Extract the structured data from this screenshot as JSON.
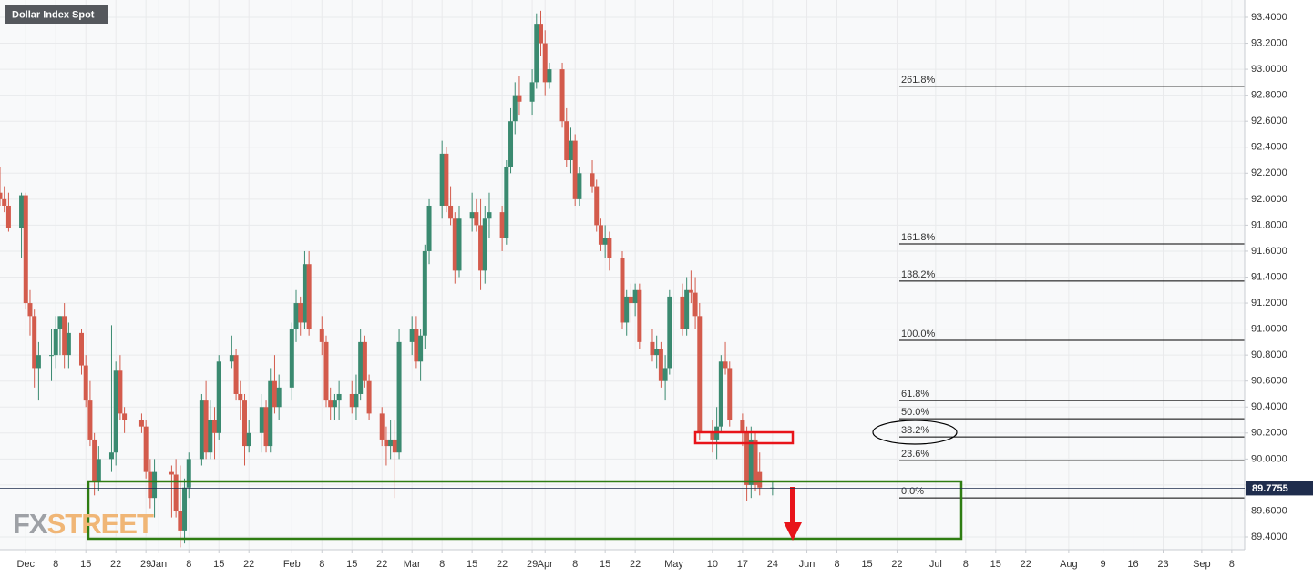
{
  "chart_data": {
    "type": "candlestick",
    "title": "Dollar Index Spot",
    "watermark": {
      "prefix": "FX",
      "suffix": "STREET"
    },
    "up_color": "#3a8a70",
    "down_color": "#d35b4c",
    "grid": true,
    "xlim": [
      "11-25",
      "09-11"
    ],
    "ylim": [
      89.302,
      93.533
    ],
    "yticks": [
      {
        "value": 89.4,
        "label": "89.4000"
      },
      {
        "value": 89.6,
        "label": "89.6000"
      },
      {
        "value": 89.8,
        "label": "89.8000"
      },
      {
        "value": 90.0,
        "label": "90.0000"
      },
      {
        "value": 90.2,
        "label": "90.2000"
      },
      {
        "value": 90.4,
        "label": "90.4000"
      },
      {
        "value": 90.6,
        "label": "90.6000"
      },
      {
        "value": 90.8,
        "label": "90.8000"
      },
      {
        "value": 91.0,
        "label": "91.0000"
      },
      {
        "value": 91.2,
        "label": "91.2000"
      },
      {
        "value": 91.4,
        "label": "91.4000"
      },
      {
        "value": 91.6,
        "label": "91.6000"
      },
      {
        "value": 91.8,
        "label": "91.8000"
      },
      {
        "value": 92.0,
        "label": "92.0000"
      },
      {
        "value": 92.2,
        "label": "92.2000"
      },
      {
        "value": 92.4,
        "label": "92.4000"
      },
      {
        "value": 92.6,
        "label": "92.6000"
      },
      {
        "value": 92.8,
        "label": "92.8000"
      },
      {
        "value": 93.0,
        "label": "93.0000"
      },
      {
        "value": 93.2,
        "label": "93.2000"
      },
      {
        "value": 93.4,
        "label": "93.4000"
      }
    ],
    "xticks": [
      {
        "value": "12-01",
        "label": "Dec"
      },
      {
        "value": "12-08",
        "label": "8"
      },
      {
        "value": "12-15",
        "label": "15"
      },
      {
        "value": "12-22",
        "label": "22"
      },
      {
        "value": "12-29",
        "label": "29"
      },
      {
        "value": "01-01",
        "label": "Jan"
      },
      {
        "value": "01-08",
        "label": "8"
      },
      {
        "value": "01-15",
        "label": "15"
      },
      {
        "value": "01-22",
        "label": "22"
      },
      {
        "value": "02-01",
        "label": "Feb"
      },
      {
        "value": "02-08",
        "label": "8"
      },
      {
        "value": "02-15",
        "label": "15"
      },
      {
        "value": "02-22",
        "label": "22"
      },
      {
        "value": "03-01",
        "label": "Mar"
      },
      {
        "value": "03-08",
        "label": "8"
      },
      {
        "value": "03-15",
        "label": "15"
      },
      {
        "value": "03-22",
        "label": "22"
      },
      {
        "value": "03-29",
        "label": "29"
      },
      {
        "value": "04-01",
        "label": "Apr"
      },
      {
        "value": "04-08",
        "label": "8"
      },
      {
        "value": "04-15",
        "label": "15"
      },
      {
        "value": "04-22",
        "label": "22"
      },
      {
        "value": "05-01",
        "label": "May"
      },
      {
        "value": "05-10",
        "label": "10"
      },
      {
        "value": "05-17",
        "label": "17"
      },
      {
        "value": "05-24",
        "label": "24"
      },
      {
        "value": "06-01",
        "label": "Jun"
      },
      {
        "value": "06-08",
        "label": "8"
      },
      {
        "value": "06-15",
        "label": "15"
      },
      {
        "value": "06-22",
        "label": "22"
      },
      {
        "value": "07-01",
        "label": "Jul"
      },
      {
        "value": "07-08",
        "label": "8"
      },
      {
        "value": "07-15",
        "label": "15"
      },
      {
        "value": "07-22",
        "label": "22"
      },
      {
        "value": "08-01",
        "label": "Aug"
      },
      {
        "value": "08-09",
        "label": "9"
      },
      {
        "value": "08-16",
        "label": "16"
      },
      {
        "value": "08-23",
        "label": "23"
      },
      {
        "value": "09-01",
        "label": "Sep"
      },
      {
        "value": "09-08",
        "label": "8"
      }
    ],
    "x": [
      "11-25",
      "11-26",
      "11-27",
      "11-30",
      "12-01",
      "12-02",
      "12-03",
      "12-04",
      "12-07",
      "12-08",
      "12-09",
      "12-10",
      "12-11",
      "12-14",
      "12-15",
      "12-16",
      "12-17",
      "12-18",
      "12-21",
      "12-22",
      "12-23",
      "12-24",
      "12-28",
      "12-29",
      "12-30",
      "12-31",
      "01-04",
      "01-05",
      "01-06",
      "01-07",
      "01-08",
      "01-11",
      "01-12",
      "01-13",
      "01-14",
      "01-15",
      "01-18",
      "01-19",
      "01-20",
      "01-21",
      "01-22",
      "01-25",
      "01-26",
      "01-27",
      "01-28",
      "01-29",
      "02-01",
      "02-02",
      "02-03",
      "02-04",
      "02-05",
      "02-08",
      "02-09",
      "02-10",
      "02-11",
      "02-12",
      "02-15",
      "02-16",
      "02-17",
      "02-18",
      "02-19",
      "02-22",
      "02-23",
      "02-24",
      "02-25",
      "02-26",
      "03-01",
      "03-02",
      "03-03",
      "03-04",
      "03-05",
      "03-08",
      "03-09",
      "03-10",
      "03-11",
      "03-12",
      "03-15",
      "03-16",
      "03-17",
      "03-18",
      "03-19",
      "03-22",
      "03-23",
      "03-24",
      "03-25",
      "03-26",
      "03-29",
      "03-30",
      "03-31",
      "04-01",
      "04-02",
      "04-05",
      "04-06",
      "04-07",
      "04-08",
      "04-09",
      "04-12",
      "04-13",
      "04-14",
      "04-15",
      "04-16",
      "04-19",
      "04-20",
      "04-21",
      "04-22",
      "04-23",
      "04-26",
      "04-27",
      "04-28",
      "04-29",
      "04-30",
      "05-03",
      "05-04",
      "05-05",
      "05-06",
      "05-07",
      "05-10",
      "05-11",
      "05-12",
      "05-13",
      "05-14",
      "05-17",
      "05-18",
      "05-19",
      "05-20",
      "05-21",
      "05-24"
    ],
    "open": [
      92.05,
      92.0,
      91.95,
      91.78,
      92.03,
      91.2,
      91.1,
      90.7,
      90.8,
      90.8,
      91.0,
      91.1,
      90.8,
      90.97,
      90.72,
      90.45,
      90.15,
      89.82,
      90.0,
      90.05,
      90.68,
      90.35,
      90.3,
      90.25,
      89.9,
      89.7,
      89.9,
      89.88,
      89.6,
      89.45,
      89.78,
      90.0,
      90.45,
      90.05,
      90.3,
      90.2,
      90.75,
      90.8,
      90.5,
      90.45,
      90.1,
      90.2,
      90.4,
      90.1,
      90.6,
      90.4,
      90.55,
      91.0,
      91.2,
      91.05,
      91.5,
      91.0,
      90.9,
      90.45,
      90.4,
      90.45,
      90.5,
      90.4,
      90.5,
      90.9,
      90.6,
      90.35,
      90.15,
      90.1,
      90.15,
      90.05,
      90.9,
      91.0,
      90.75,
      90.95,
      91.6,
      91.95,
      92.35,
      91.95,
      91.85,
      91.45,
      91.85,
      91.9,
      91.8,
      91.45,
      91.85,
      91.9,
      91.7,
      92.25,
      92.6,
      92.8,
      92.75,
      92.9,
      93.35,
      93.2,
      92.9,
      93.0,
      92.6,
      92.3,
      92.45,
      92.0,
      92.2,
      92.1,
      91.8,
      91.65,
      91.7,
      91.55,
      91.05,
      91.25,
      91.2,
      91.3,
      90.9,
      90.8,
      90.85,
      90.6,
      90.7,
      91.25,
      91.0,
      91.3,
      91.28,
      91.1,
      90.2,
      90.15,
      90.25,
      90.75,
      90.7,
      90.3,
      90.2,
      89.8,
      90.15,
      89.9,
      89.78
    ],
    "high": [
      92.25,
      92.1,
      92.05,
      92.05,
      92.05,
      91.3,
      91.15,
      90.9,
      91.0,
      91.1,
      91.1,
      91.2,
      91.05,
      91.0,
      90.8,
      90.6,
      90.2,
      90.1,
      91.03,
      90.75,
      90.8,
      90.4,
      90.35,
      90.3,
      90.0,
      90.0,
      89.95,
      90.0,
      89.95,
      89.85,
      90.05,
      90.5,
      90.6,
      90.45,
      90.4,
      90.8,
      90.95,
      90.85,
      90.6,
      90.5,
      90.3,
      90.5,
      90.45,
      90.7,
      90.8,
      90.65,
      91.05,
      91.3,
      91.25,
      91.6,
      91.6,
      91.1,
      90.95,
      90.55,
      90.5,
      90.6,
      90.6,
      90.65,
      91.0,
      90.95,
      90.65,
      90.4,
      90.25,
      90.3,
      90.3,
      91.0,
      91.1,
      91.1,
      91.0,
      91.65,
      92.0,
      92.45,
      92.4,
      92.1,
      91.9,
      91.95,
      92.05,
      92.0,
      92.0,
      91.95,
      92.05,
      91.95,
      92.3,
      92.7,
      92.9,
      92.95,
      93.0,
      93.43,
      93.45,
      93.3,
      93.05,
      93.05,
      92.7,
      92.55,
      92.5,
      92.25,
      92.3,
      92.15,
      91.85,
      91.8,
      91.75,
      91.6,
      91.3,
      91.35,
      91.35,
      91.35,
      91.0,
      90.95,
      90.9,
      90.8,
      91.3,
      91.35,
      91.4,
      91.45,
      91.4,
      91.2,
      90.3,
      90.4,
      90.8,
      90.9,
      90.75,
      90.35,
      90.25,
      90.25,
      90.2,
      90.05,
      89.82
    ],
    "low": [
      91.95,
      91.9,
      91.75,
      91.55,
      91.15,
      90.95,
      90.55,
      90.45,
      90.6,
      90.7,
      90.8,
      90.7,
      90.7,
      90.65,
      90.4,
      90.1,
      89.72,
      89.75,
      89.9,
      89.95,
      90.3,
      90.2,
      90.2,
      89.85,
      89.62,
      89.55,
      89.55,
      89.55,
      89.32,
      89.35,
      89.7,
      89.95,
      90.0,
      90.0,
      90.0,
      90.15,
      90.7,
      90.45,
      90.3,
      89.95,
      90.05,
      90.05,
      90.05,
      90.05,
      90.35,
      90.3,
      90.45,
      90.9,
      90.95,
      91.0,
      90.95,
      90.8,
      90.4,
      90.3,
      90.3,
      90.3,
      90.35,
      90.3,
      90.45,
      90.55,
      90.3,
      90.1,
      89.95,
      90.0,
      89.7,
      90.0,
      90.8,
      90.7,
      90.6,
      90.85,
      91.5,
      91.85,
      91.9,
      91.8,
      91.35,
      91.4,
      91.75,
      91.75,
      91.3,
      91.35,
      91.7,
      91.6,
      91.65,
      92.2,
      92.5,
      92.65,
      92.65,
      92.85,
      93.1,
      92.8,
      92.85,
      92.55,
      92.25,
      92.2,
      91.95,
      91.95,
      92.05,
      91.75,
      91.6,
      91.55,
      91.45,
      91.0,
      90.95,
      91.05,
      91.1,
      90.85,
      90.75,
      90.7,
      90.55,
      90.45,
      90.65,
      90.95,
      90.95,
      91.2,
      91.0,
      90.15,
      90.05,
      90.0,
      90.2,
      90.65,
      90.25,
      90.1,
      89.68,
      89.7,
      89.75,
      89.72,
      89.72
    ],
    "close": [
      92.0,
      91.95,
      91.78,
      92.03,
      91.2,
      91.1,
      90.7,
      90.8,
      90.8,
      91.0,
      91.1,
      90.8,
      90.97,
      90.72,
      90.45,
      90.15,
      89.82,
      90.0,
      90.05,
      90.68,
      90.35,
      90.3,
      90.25,
      89.9,
      89.7,
      89.9,
      89.88,
      89.6,
      89.45,
      89.78,
      90.0,
      90.45,
      90.05,
      90.3,
      90.2,
      90.75,
      90.8,
      90.5,
      90.45,
      90.1,
      90.2,
      90.4,
      90.1,
      90.6,
      90.4,
      90.55,
      91.0,
      91.2,
      91.05,
      91.5,
      91.0,
      90.9,
      90.45,
      90.4,
      90.45,
      90.5,
      90.4,
      90.5,
      90.9,
      90.6,
      90.35,
      90.15,
      90.1,
      90.15,
      90.05,
      90.9,
      91.0,
      90.75,
      90.95,
      91.6,
      91.95,
      92.35,
      91.95,
      91.85,
      91.45,
      91.85,
      91.9,
      91.8,
      91.45,
      91.85,
      91.9,
      91.7,
      92.25,
      92.6,
      92.8,
      92.75,
      92.9,
      93.35,
      93.2,
      92.9,
      93.0,
      92.6,
      92.3,
      92.45,
      92.0,
      92.2,
      92.1,
      91.8,
      91.65,
      91.7,
      91.55,
      91.05,
      91.25,
      91.2,
      91.3,
      90.9,
      90.8,
      90.85,
      90.6,
      90.7,
      91.25,
      91.0,
      91.3,
      91.28,
      91.1,
      90.2,
      90.15,
      90.25,
      90.75,
      90.7,
      90.3,
      90.2,
      89.8,
      90.15,
      89.8,
      89.78,
      89.78
    ],
    "last_price": {
      "value": 89.7755,
      "label": "89.7755",
      "color": "#1f2d4d"
    },
    "fib_levels": [
      {
        "label": "261.8%",
        "value": 92.868
      },
      {
        "label": "161.8%",
        "value": 91.656
      },
      {
        "label": "138.2%",
        "value": 91.369
      },
      {
        "label": "100.0%",
        "value": 90.913
      },
      {
        "label": "61.8%",
        "value": 90.45
      },
      {
        "label": "50.0%",
        "value": 90.31
      },
      {
        "label": "38.2%",
        "value": 90.17
      },
      {
        "label": "23.6%",
        "value": 89.988
      },
      {
        "label": "0.0%",
        "value": 89.7
      }
    ]
  }
}
